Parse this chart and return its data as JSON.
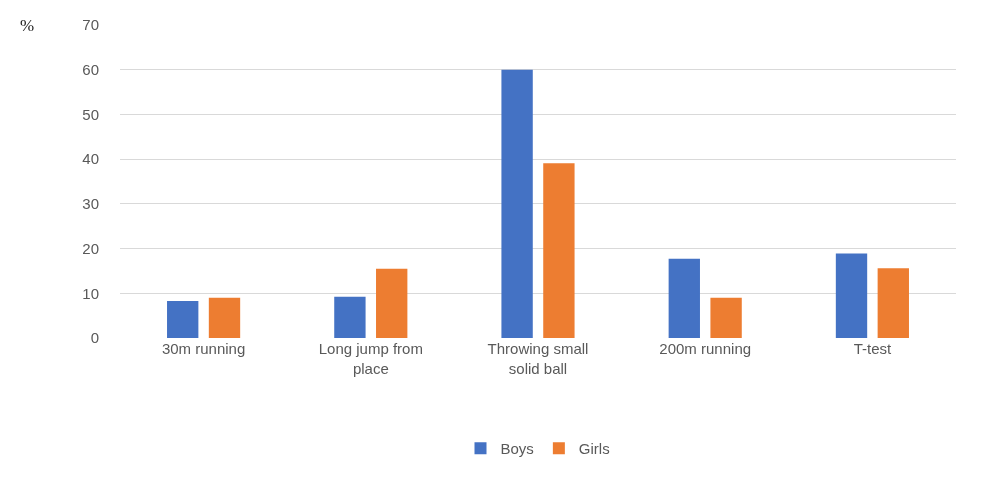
{
  "chart_data": {
    "type": "bar",
    "ylabel": "%",
    "categories": [
      "30m running",
      "Long jump from place",
      "Throwing small solid ball",
      "200m running",
      "T-test"
    ],
    "series": [
      {
        "name": "Boys",
        "color": "#4472c4",
        "values": [
          8.3,
          9.2,
          60,
          17.7,
          18.9
        ]
      },
      {
        "name": "Girls",
        "color": "#ed7d31",
        "values": [
          9.0,
          15.5,
          39.1,
          9.0,
          15.6
        ]
      }
    ],
    "ylim": [
      0,
      70
    ],
    "yticks": [
      0,
      10,
      20,
      30,
      40,
      50,
      60,
      70
    ],
    "grid": "y",
    "legend": "bottom"
  }
}
